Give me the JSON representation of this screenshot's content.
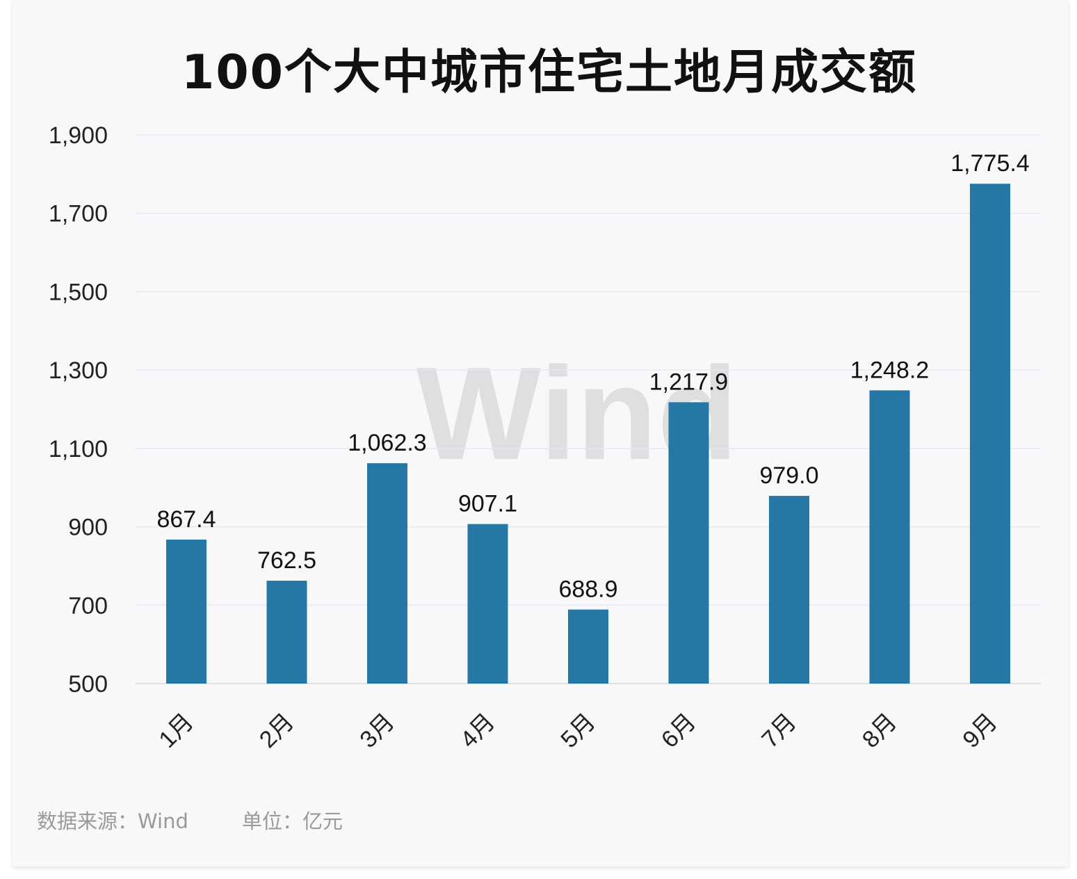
{
  "chart_data": {
    "type": "bar",
    "title": "100个大中城市住宅土地月成交额",
    "categories": [
      "1月",
      "2月",
      "3月",
      "4月",
      "5月",
      "6月",
      "7月",
      "8月",
      "9月"
    ],
    "values": [
      867.4,
      762.5,
      1062.3,
      907.1,
      688.9,
      1217.9,
      979.0,
      1248.2,
      1775.4
    ],
    "data_labels": [
      "867.4",
      "762.5",
      "1,062.3",
      "907.1",
      "688.9",
      "1,217.9",
      "979.0",
      "1,248.2",
      "1,775.4"
    ],
    "ylim": [
      500,
      1900
    ],
    "yticks": [
      500,
      700,
      900,
      1100,
      1300,
      1500,
      1700,
      1900
    ],
    "ytick_labels": [
      "500",
      "700",
      "900",
      "1,100",
      "1,300",
      "1,500",
      "1,700",
      "1,900"
    ],
    "grid": true,
    "bar_color": "#2577a6",
    "xlabel": "",
    "ylabel": ""
  },
  "watermark": "Wind",
  "footer": {
    "source": "数据来源：Wind",
    "unit": "单位：亿元"
  }
}
